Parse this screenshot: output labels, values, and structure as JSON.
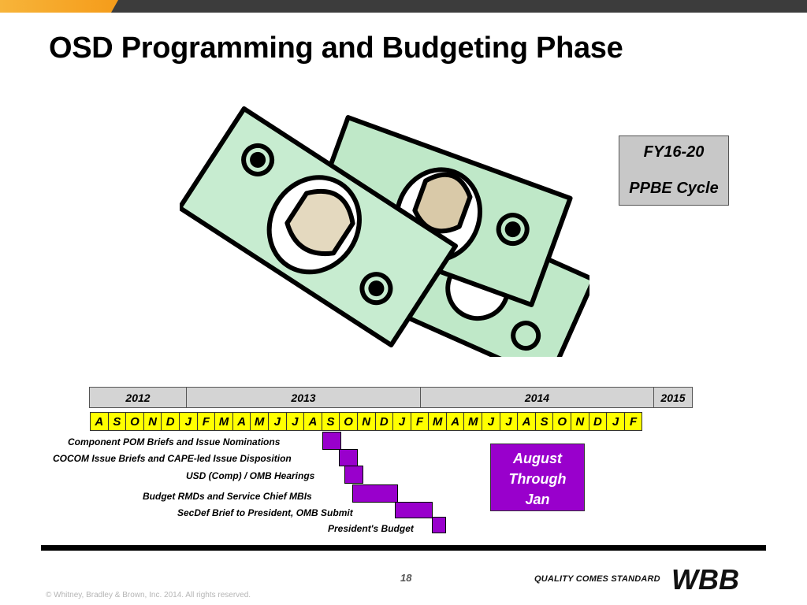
{
  "title": "OSD Programming and Budgeting Phase",
  "cycle_box": {
    "line1": "FY16-20",
    "line2": "PPBE Cycle"
  },
  "years": [
    {
      "label": "2012"
    },
    {
      "label": "2013"
    },
    {
      "label": "2014"
    },
    {
      "label": "2015"
    }
  ],
  "months": [
    "A",
    "S",
    "O",
    "N",
    "D",
    "J",
    "F",
    "M",
    "A",
    "M",
    "J",
    "J",
    "A",
    "S",
    "O",
    "N",
    "D",
    "J",
    "F",
    "M",
    "A",
    "M",
    "J",
    "J",
    "A",
    "S",
    "O",
    "N",
    "D",
    "J",
    "F"
  ],
  "tasks": [
    {
      "label": "Component POM Briefs and Issue Nominations"
    },
    {
      "label": "COCOM Issue Briefs and CAPE-led Issue Disposition"
    },
    {
      "label": "USD (Comp) / OMB Hearings"
    },
    {
      "label": "Budget RMDs and Service Chief MBIs"
    },
    {
      "label": "SecDef Brief to President,  OMB Submit"
    },
    {
      "label": "President's Budget"
    }
  ],
  "callout": {
    "line1": "August",
    "line2": "Through",
    "line3": "Jan"
  },
  "colors": {
    "bar": "#9900cc",
    "month_fill": "#ffff00",
    "year_fill": "#d4d4d4",
    "accent": "#f7b43a"
  },
  "footer": {
    "page_number": "18",
    "tagline": "QUALITY COMES STANDARD",
    "logo_text": "WBB",
    "copyright": "© Whitney, Bradley & Brown, Inc. 2014. All rights reserved."
  }
}
